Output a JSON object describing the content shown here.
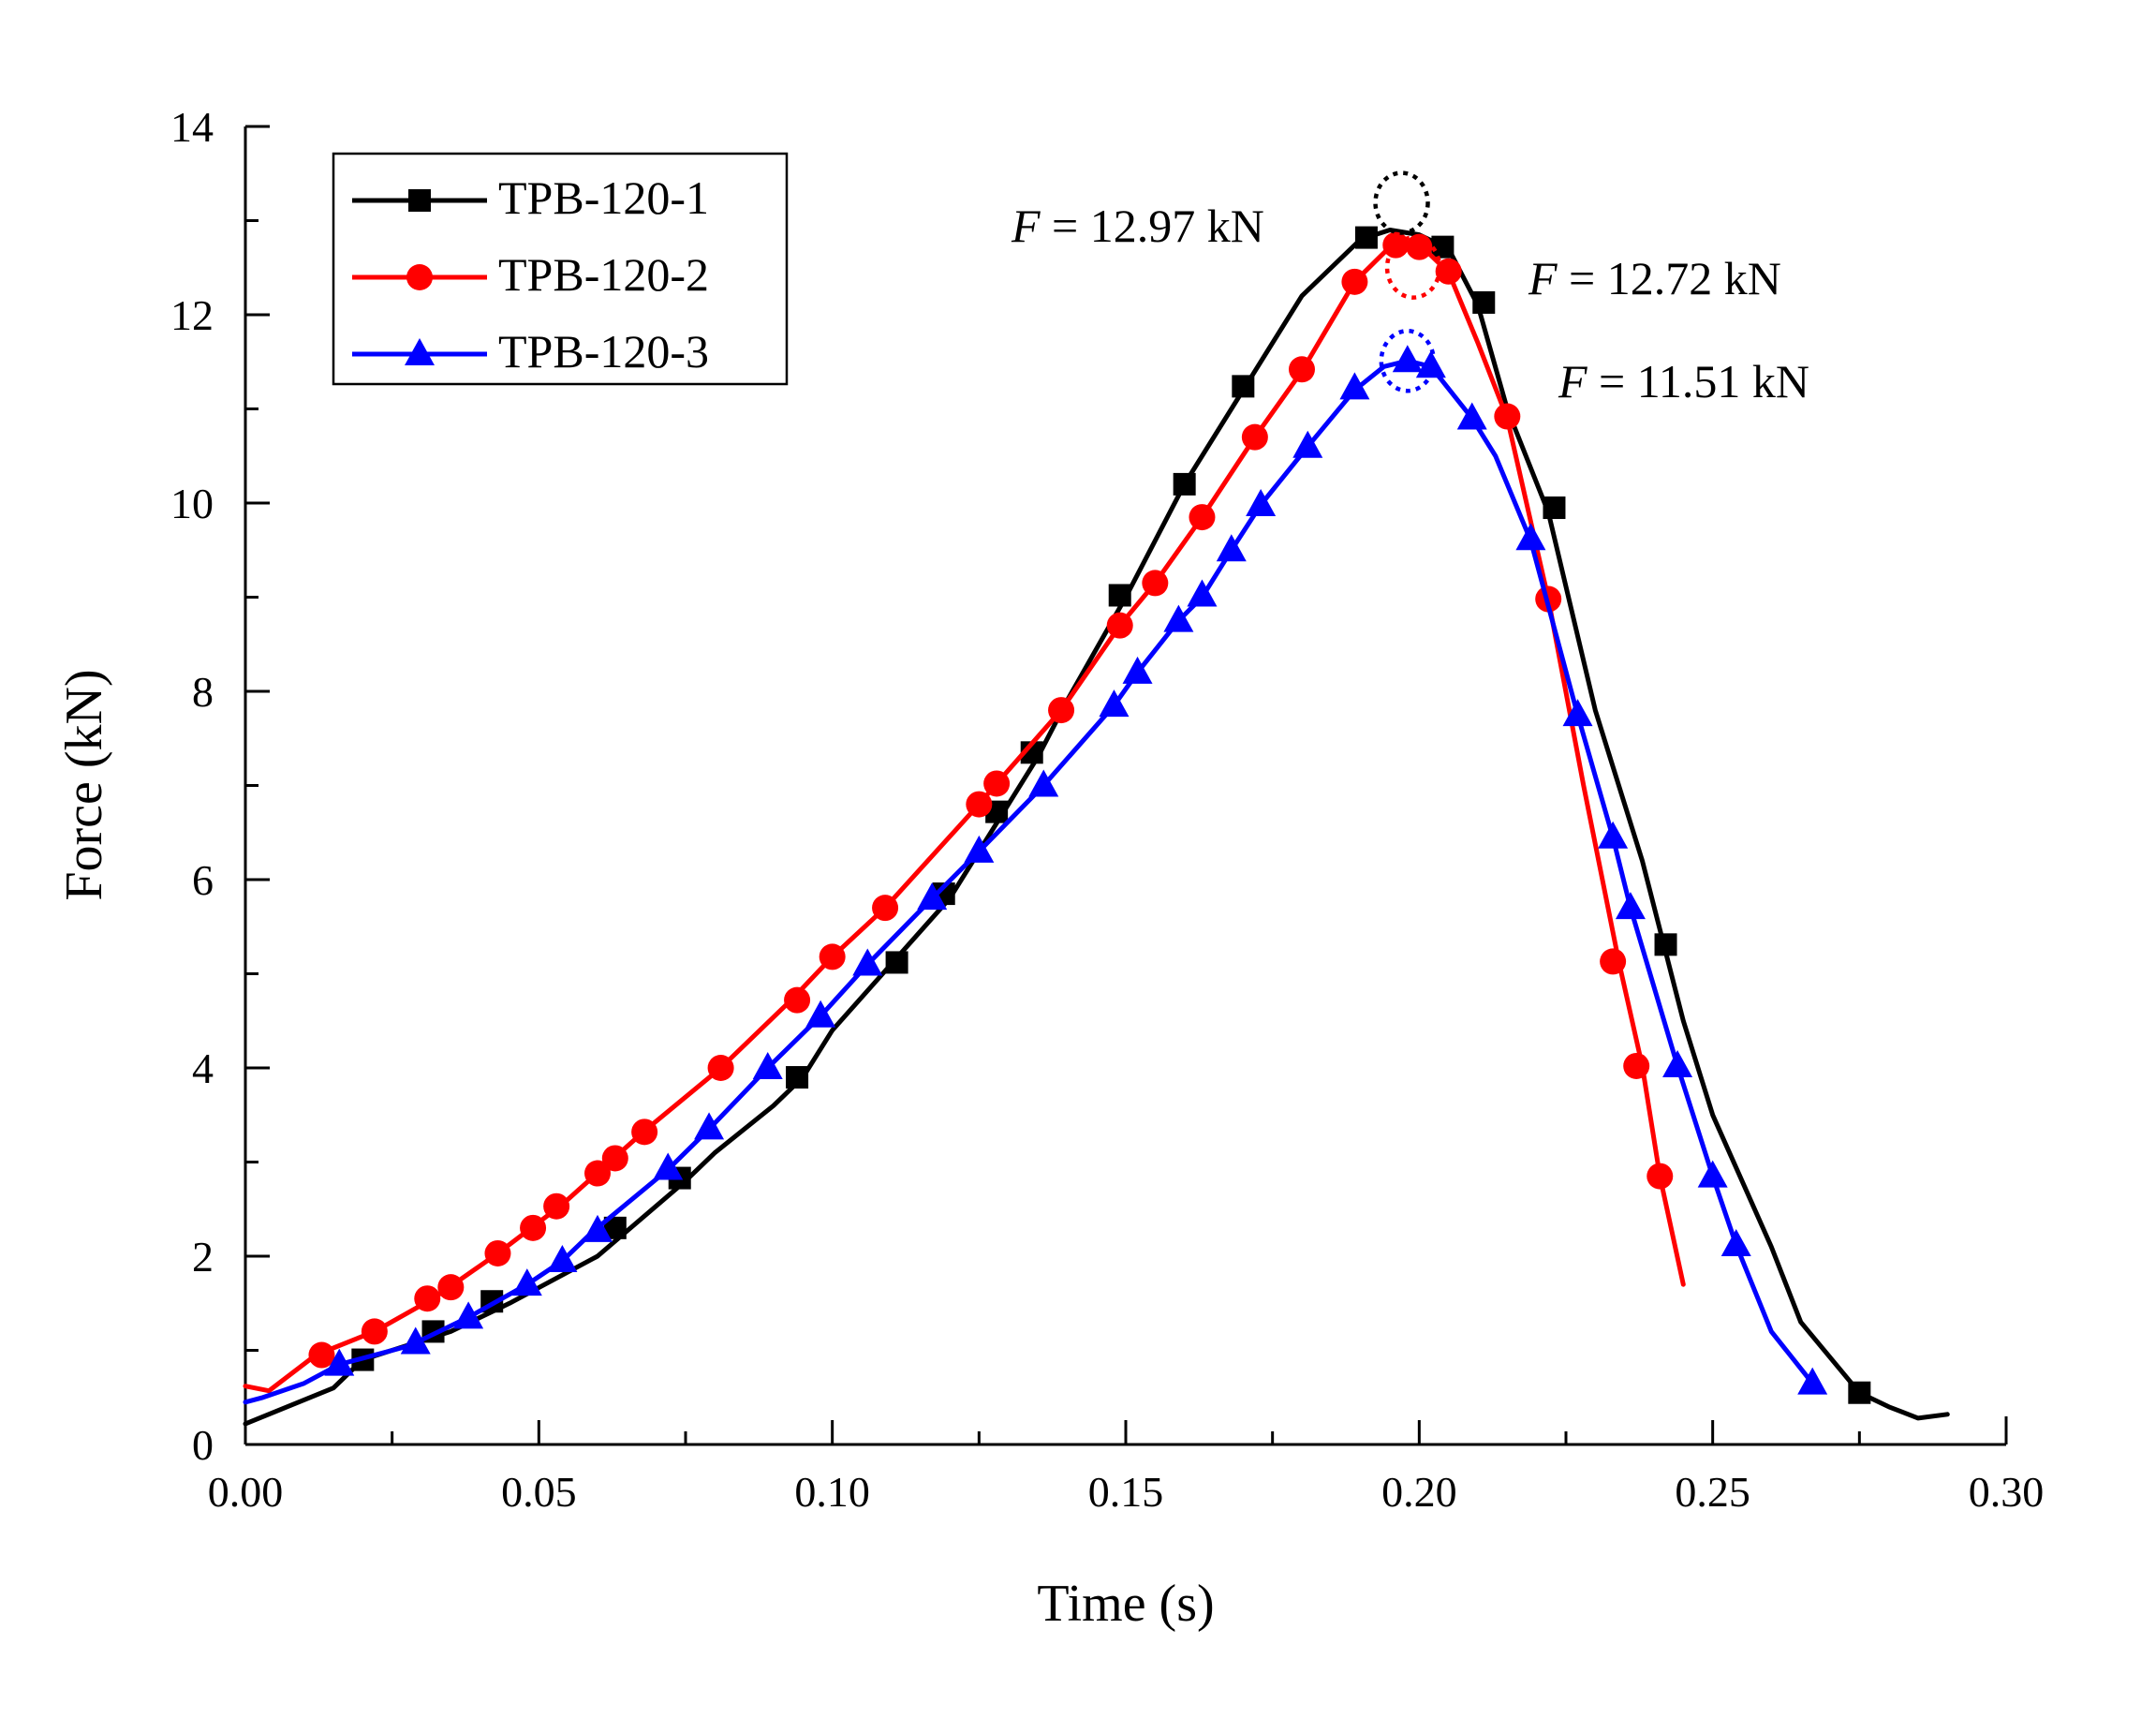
{
  "chart_data": {
    "type": "line",
    "title": "",
    "xlabel": "Time (s)",
    "ylabel": "Force (kN)",
    "xlim": [
      0,
      0.3
    ],
    "ylim": [
      0,
      14
    ],
    "xticks": [
      "0.00",
      "0.05",
      "0.10",
      "0.15",
      "0.20",
      "0.25",
      "0.30"
    ],
    "yticks": [
      "0",
      "2",
      "4",
      "6",
      "8",
      "10",
      "12",
      "14"
    ],
    "legend_position": "top-left",
    "series": [
      {
        "name": "TPB-120-1",
        "color": "#000000",
        "marker": "square",
        "line": [
          [
            0.0,
            0.22
          ],
          [
            0.015,
            0.6
          ],
          [
            0.02,
            0.9
          ],
          [
            0.035,
            1.2
          ],
          [
            0.045,
            1.5
          ],
          [
            0.06,
            2.0
          ],
          [
            0.075,
            2.8
          ],
          [
            0.08,
            3.1
          ],
          [
            0.09,
            3.6
          ],
          [
            0.095,
            3.9
          ],
          [
            0.1,
            4.4
          ],
          [
            0.11,
            5.1
          ],
          [
            0.12,
            5.8
          ],
          [
            0.13,
            6.8
          ],
          [
            0.135,
            7.3
          ],
          [
            0.14,
            7.9
          ],
          [
            0.15,
            9.0
          ],
          [
            0.16,
            10.2
          ],
          [
            0.17,
            11.2
          ],
          [
            0.18,
            12.2
          ],
          [
            0.19,
            12.8
          ],
          [
            0.195,
            12.9
          ],
          [
            0.2,
            12.85
          ],
          [
            0.205,
            12.7
          ],
          [
            0.21,
            12.1
          ],
          [
            0.215,
            11.0
          ],
          [
            0.222,
            9.9
          ],
          [
            0.23,
            7.8
          ],
          [
            0.238,
            6.2
          ],
          [
            0.245,
            4.5
          ],
          [
            0.25,
            3.5
          ],
          [
            0.26,
            2.1
          ],
          [
            0.265,
            1.3
          ],
          [
            0.275,
            0.55
          ],
          [
            0.28,
            0.4
          ],
          [
            0.285,
            0.28
          ],
          [
            0.29,
            0.32
          ]
        ],
        "markers": [
          [
            0.02,
            0.9
          ],
          [
            0.032,
            1.2
          ],
          [
            0.042,
            1.52
          ],
          [
            0.063,
            2.3
          ],
          [
            0.074,
            2.83
          ],
          [
            0.094,
            3.9
          ],
          [
            0.111,
            5.12
          ],
          [
            0.119,
            5.85
          ],
          [
            0.128,
            6.72
          ],
          [
            0.134,
            7.35
          ],
          [
            0.149,
            9.02
          ],
          [
            0.16,
            10.2
          ],
          [
            0.17,
            11.24
          ],
          [
            0.191,
            12.82
          ],
          [
            0.204,
            12.72
          ],
          [
            0.211,
            12.13
          ],
          [
            0.223,
            9.95
          ],
          [
            0.242,
            5.31
          ],
          [
            0.275,
            0.55
          ]
        ]
      },
      {
        "name": "TPB-120-2",
        "color": "#ff0000",
        "marker": "circle",
        "line": [
          [
            0.0,
            0.62
          ],
          [
            0.004,
            0.57
          ],
          [
            0.012,
            0.95
          ],
          [
            0.022,
            1.2
          ],
          [
            0.032,
            1.55
          ],
          [
            0.043,
            2.03
          ],
          [
            0.054,
            2.55
          ],
          [
            0.068,
            3.33
          ],
          [
            0.081,
            4.0
          ],
          [
            0.093,
            4.72
          ],
          [
            0.1,
            5.18
          ],
          [
            0.109,
            5.7
          ],
          [
            0.125,
            6.8
          ],
          [
            0.128,
            7.02
          ],
          [
            0.139,
            7.8
          ],
          [
            0.149,
            8.7
          ],
          [
            0.155,
            9.15
          ],
          [
            0.163,
            9.85
          ],
          [
            0.172,
            10.7
          ],
          [
            0.18,
            11.4
          ],
          [
            0.189,
            12.35
          ],
          [
            0.195,
            12.72
          ],
          [
            0.2,
            12.75
          ],
          [
            0.205,
            12.45
          ],
          [
            0.21,
            11.7
          ],
          [
            0.215,
            10.9
          ],
          [
            0.222,
            8.98
          ],
          [
            0.228,
            7.0
          ],
          [
            0.234,
            5.13
          ],
          [
            0.238,
            4.02
          ],
          [
            0.241,
            2.85
          ],
          [
            0.245,
            1.7
          ]
        ],
        "markers": [
          [
            0.013,
            0.95
          ],
          [
            0.022,
            1.2
          ],
          [
            0.031,
            1.55
          ],
          [
            0.035,
            1.67
          ],
          [
            0.043,
            2.03
          ],
          [
            0.049,
            2.3
          ],
          [
            0.053,
            2.53
          ],
          [
            0.06,
            2.88
          ],
          [
            0.063,
            3.04
          ],
          [
            0.068,
            3.32
          ],
          [
            0.081,
            4.0
          ],
          [
            0.094,
            4.72
          ],
          [
            0.1,
            5.18
          ],
          [
            0.109,
            5.7
          ],
          [
            0.125,
            6.8
          ],
          [
            0.128,
            7.02
          ],
          [
            0.139,
            7.8
          ],
          [
            0.149,
            8.7
          ],
          [
            0.155,
            9.15
          ],
          [
            0.163,
            9.85
          ],
          [
            0.172,
            10.7
          ],
          [
            0.18,
            11.42
          ],
          [
            0.189,
            12.35
          ],
          [
            0.196,
            12.74
          ],
          [
            0.2,
            12.72
          ],
          [
            0.205,
            12.46
          ],
          [
            0.215,
            10.92
          ],
          [
            0.222,
            8.98
          ],
          [
            0.233,
            5.13
          ],
          [
            0.237,
            4.02
          ],
          [
            0.241,
            2.85
          ]
        ]
      },
      {
        "name": "TPB-120-3",
        "color": "#0000ff",
        "marker": "triangle",
        "line": [
          [
            0.0,
            0.45
          ],
          [
            0.003,
            0.5
          ],
          [
            0.01,
            0.65
          ],
          [
            0.016,
            0.85
          ],
          [
            0.028,
            1.05
          ],
          [
            0.038,
            1.35
          ],
          [
            0.048,
            1.7
          ],
          [
            0.054,
            1.95
          ],
          [
            0.059,
            2.25
          ],
          [
            0.072,
            2.92
          ],
          [
            0.079,
            3.35
          ],
          [
            0.089,
            4.0
          ],
          [
            0.098,
            4.55
          ],
          [
            0.106,
            5.1
          ],
          [
            0.117,
            5.8
          ],
          [
            0.125,
            6.3
          ],
          [
            0.136,
            7.0
          ],
          [
            0.148,
            7.85
          ],
          [
            0.152,
            8.2
          ],
          [
            0.159,
            8.75
          ],
          [
            0.163,
            9.0
          ],
          [
            0.168,
            9.5
          ],
          [
            0.173,
            9.98
          ],
          [
            0.181,
            10.6
          ],
          [
            0.189,
            11.2
          ],
          [
            0.194,
            11.45
          ],
          [
            0.198,
            11.51
          ],
          [
            0.202,
            11.45
          ],
          [
            0.209,
            10.9
          ],
          [
            0.213,
            10.5
          ],
          [
            0.219,
            9.6
          ],
          [
            0.227,
            7.75
          ],
          [
            0.233,
            6.45
          ],
          [
            0.236,
            5.7
          ],
          [
            0.244,
            4.02
          ],
          [
            0.25,
            2.85
          ],
          [
            0.254,
            2.12
          ],
          [
            0.26,
            1.2
          ],
          [
            0.267,
            0.65
          ]
        ],
        "markers": [
          [
            0.016,
            0.85
          ],
          [
            0.029,
            1.08
          ],
          [
            0.038,
            1.35
          ],
          [
            0.048,
            1.7
          ],
          [
            0.054,
            1.95
          ],
          [
            0.06,
            2.27
          ],
          [
            0.072,
            2.93
          ],
          [
            0.079,
            3.36
          ],
          [
            0.089,
            4.0
          ],
          [
            0.098,
            4.55
          ],
          [
            0.106,
            5.1
          ],
          [
            0.117,
            5.8
          ],
          [
            0.125,
            6.3
          ],
          [
            0.136,
            7.0
          ],
          [
            0.148,
            7.85
          ],
          [
            0.152,
            8.2
          ],
          [
            0.159,
            8.75
          ],
          [
            0.163,
            9.02
          ],
          [
            0.168,
            9.5
          ],
          [
            0.173,
            9.98
          ],
          [
            0.181,
            10.6
          ],
          [
            0.189,
            11.22
          ],
          [
            0.198,
            11.51
          ],
          [
            0.202,
            11.45
          ],
          [
            0.209,
            10.9
          ],
          [
            0.219,
            9.62
          ],
          [
            0.227,
            7.75
          ],
          [
            0.233,
            6.45
          ],
          [
            0.236,
            5.7
          ],
          [
            0.244,
            4.02
          ],
          [
            0.25,
            2.85
          ],
          [
            0.254,
            2.12
          ],
          [
            0.267,
            0.65
          ]
        ]
      }
    ],
    "annotations": [
      {
        "italic": "F",
        "value": " = 12.97 kN",
        "color": "#000000",
        "peak": [
          0.197,
          12.97
        ]
      },
      {
        "italic": "F",
        "value": " = 12.72 kN",
        "color": "#ff0000",
        "peak": [
          0.199,
          12.72
        ]
      },
      {
        "italic": "F",
        "value": " = 11.51 kN",
        "color": "#0000ff",
        "peak": [
          0.198,
          11.51
        ]
      }
    ]
  }
}
